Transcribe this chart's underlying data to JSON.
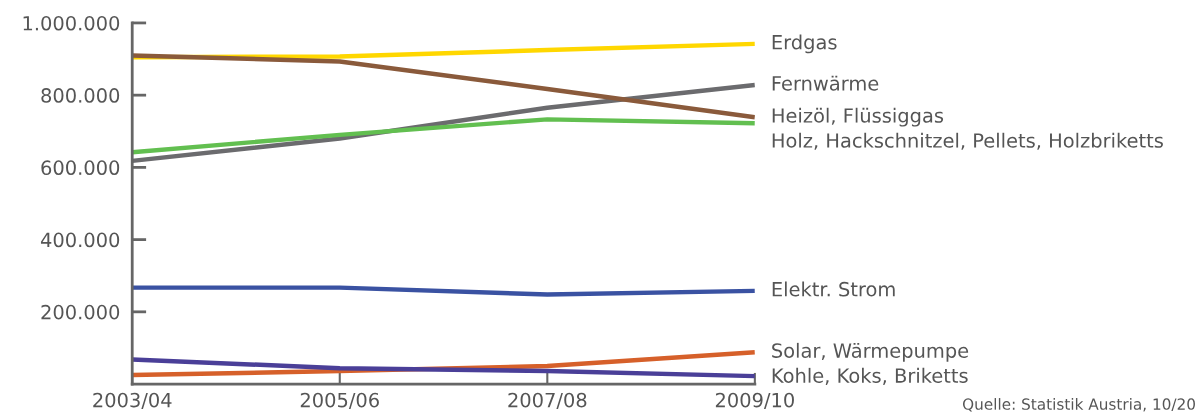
{
  "chart_data": {
    "type": "line",
    "categories": [
      "2003/04",
      "2005/06",
      "2007/08",
      "2009/10"
    ],
    "ylim": [
      0,
      1000000
    ],
    "yticks": [
      {
        "value": 200000,
        "label": "200.000"
      },
      {
        "value": 400000,
        "label": "400.000"
      },
      {
        "value": 600000,
        "label": "600.000"
      },
      {
        "value": 800000,
        "label": "800.000"
      },
      {
        "value": 1000000,
        "label": "1.000.000"
      }
    ],
    "grid": false,
    "legend": false,
    "marker": "none",
    "line_style": "solid",
    "series": [
      {
        "name": "Erdgas",
        "color": "#ffd700",
        "values": [
          905000,
          907000,
          925000,
          942000
        ]
      },
      {
        "name": "Fernwärme",
        "color": "#6b6b6e",
        "values": [
          618000,
          680000,
          765000,
          828000
        ]
      },
      {
        "name": "Heizöl, Flüssiggas",
        "color": "#8a5a3b",
        "values": [
          910000,
          893000,
          817000,
          739000
        ]
      },
      {
        "name": "Holz, Hackschnitzel, Pellets, Holzbriketts",
        "color": "#62bf50",
        "values": [
          642000,
          690000,
          733000,
          722000
        ]
      },
      {
        "name": "Elektr. Strom",
        "color": "#3a52a2",
        "values": [
          267000,
          267000,
          248000,
          258000
        ]
      },
      {
        "name": "Solar, Wärmepumpe",
        "color": "#d6602a",
        "values": [
          25000,
          36000,
          50000,
          88000
        ]
      },
      {
        "name": "Kohle, Koks, Briketts",
        "color": "#4a3f98",
        "values": [
          68000,
          44000,
          36000,
          22000
        ]
      }
    ],
    "annotations": [
      "Quelle: Statistik Austria, 10/20"
    ]
  }
}
